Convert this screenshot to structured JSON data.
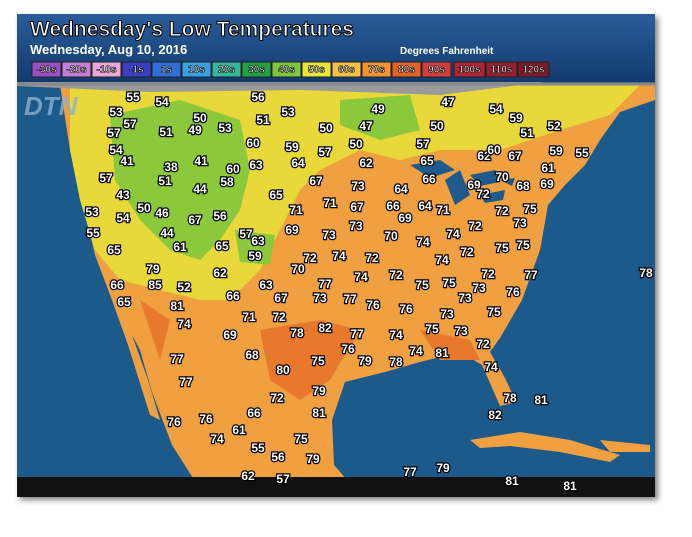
{
  "header": {
    "title": "Wednesday's Low Temperatures",
    "date": "Wednesday, Aug 10, 2016",
    "units": "Degrees Fahrenheit",
    "logo": "DTN"
  },
  "legend": {
    "labels": [
      "-30s",
      "-20s",
      "-10s",
      "-1s",
      "1s",
      "10s",
      "20s",
      "30s",
      "40s",
      "50s",
      "60s",
      "70s",
      "80s",
      "90s",
      "100s",
      "110s",
      "120s"
    ],
    "colors": [
      "#9b4fc7",
      "#c47ed6",
      "#eaa7d8",
      "#3b3dc4",
      "#2f6fd6",
      "#3aa0e6",
      "#33b79a",
      "#23a043",
      "#7dc83a",
      "#e8e53b",
      "#f5c044",
      "#f29233",
      "#e2622a",
      "#cf3d3d",
      "#b02433",
      "#922030",
      "#7c1a2a"
    ]
  },
  "temperatures": [
    55,
    54,
    56,
    49,
    47,
    54,
    53,
    57,
    50,
    53,
    51,
    59,
    52,
    57,
    51,
    49,
    53,
    50,
    47,
    50,
    51,
    54,
    60,
    59,
    57,
    50,
    57,
    62,
    60,
    67,
    59,
    55,
    41,
    38,
    41,
    60,
    63,
    64,
    62,
    65,
    61,
    57,
    51,
    58,
    67,
    73,
    64,
    66,
    69,
    70,
    68,
    69,
    43,
    44,
    65,
    72,
    53,
    50,
    46,
    54,
    56,
    67,
    71,
    71,
    67,
    66,
    69,
    64,
    71,
    72,
    75,
    73,
    55,
    44,
    57,
    69,
    73,
    73,
    70,
    74,
    74,
    72,
    75,
    75,
    65,
    61,
    65,
    63,
    59,
    72,
    74,
    72,
    74,
    72,
    70,
    79,
    62,
    74,
    72,
    72,
    77,
    78,
    66,
    85,
    52,
    63,
    77,
    75,
    75,
    73,
    76,
    65,
    81,
    66,
    67,
    73,
    77,
    76,
    76,
    73,
    74,
    71,
    72,
    73,
    75,
    69,
    78,
    82,
    77,
    74,
    75,
    73,
    77,
    68,
    75,
    76,
    79,
    78,
    74,
    81,
    72,
    74,
    77,
    80,
    79,
    78,
    81,
    72,
    81,
    66,
    82,
    76,
    76,
    61,
    74,
    75,
    55,
    56,
    79,
    77,
    79,
    62,
    57,
    81,
    81
  ]
}
